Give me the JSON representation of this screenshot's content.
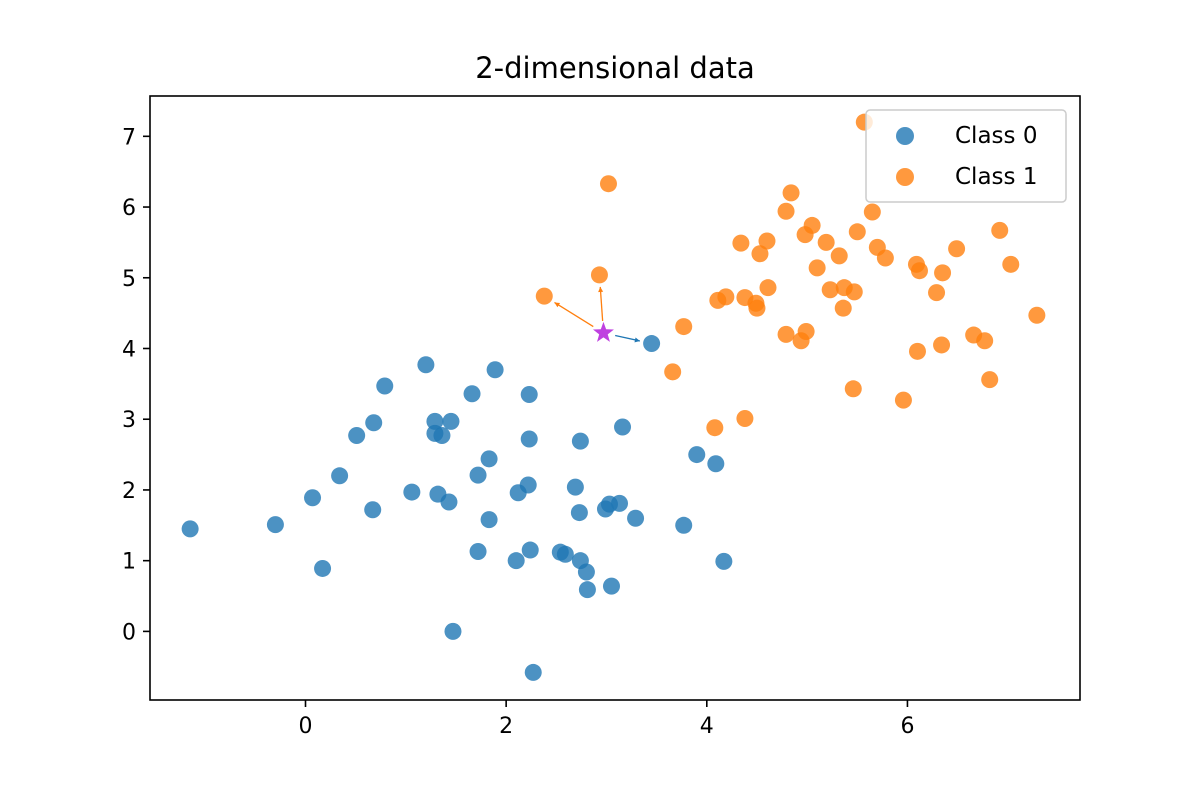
{
  "chart_data": {
    "type": "scatter",
    "title": "2-dimensional data",
    "xlabel": "",
    "ylabel": "",
    "xlim": [
      -1.55,
      7.72
    ],
    "ylim": [
      -0.97,
      7.57
    ],
    "xticks": [
      0,
      2,
      4,
      6
    ],
    "yticks": [
      0,
      1,
      2,
      3,
      4,
      5,
      6,
      7
    ],
    "grid": false,
    "legend_position": "top-right",
    "series": [
      {
        "name": "Class 0",
        "color": "#1f77b4",
        "points": [
          [
            -1.15,
            1.45
          ],
          [
            -0.3,
            1.51
          ],
          [
            0.07,
            1.89
          ],
          [
            0.17,
            0.89
          ],
          [
            0.34,
            2.2
          ],
          [
            0.51,
            2.77
          ],
          [
            0.67,
            1.72
          ],
          [
            0.68,
            2.95
          ],
          [
            0.79,
            3.47
          ],
          [
            1.06,
            1.97
          ],
          [
            1.2,
            3.77
          ],
          [
            1.29,
            2.97
          ],
          [
            1.29,
            2.8
          ],
          [
            1.32,
            1.94
          ],
          [
            1.36,
            2.77
          ],
          [
            1.43,
            1.83
          ],
          [
            1.45,
            2.97
          ],
          [
            1.47,
            0.0
          ],
          [
            1.66,
            3.36
          ],
          [
            1.72,
            2.21
          ],
          [
            1.72,
            1.13
          ],
          [
            1.83,
            2.44
          ],
          [
            1.83,
            1.58
          ],
          [
            1.89,
            3.7
          ],
          [
            2.1,
            1.0
          ],
          [
            2.12,
            1.96
          ],
          [
            2.22,
            2.07
          ],
          [
            2.23,
            3.35
          ],
          [
            2.23,
            2.72
          ],
          [
            2.24,
            1.15
          ],
          [
            2.27,
            -0.58
          ],
          [
            2.54,
            1.12
          ],
          [
            2.59,
            1.09
          ],
          [
            2.69,
            2.04
          ],
          [
            2.73,
            1.68
          ],
          [
            2.74,
            2.69
          ],
          [
            2.74,
            1.0
          ],
          [
            2.8,
            0.84
          ],
          [
            2.81,
            0.59
          ],
          [
            2.99,
            1.73
          ],
          [
            3.03,
            1.8
          ],
          [
            3.05,
            0.64
          ],
          [
            3.13,
            1.81
          ],
          [
            3.16,
            2.89
          ],
          [
            3.29,
            1.6
          ],
          [
            3.45,
            4.07
          ],
          [
            3.77,
            1.5
          ],
          [
            3.9,
            2.5
          ],
          [
            4.09,
            2.37
          ],
          [
            4.17,
            0.99
          ]
        ]
      },
      {
        "name": "Class 1",
        "color": "#ff7f0e",
        "points": [
          [
            2.38,
            4.74
          ],
          [
            2.93,
            5.04
          ],
          [
            3.02,
            6.33
          ],
          [
            3.66,
            3.67
          ],
          [
            3.77,
            4.31
          ],
          [
            4.08,
            2.88
          ],
          [
            4.11,
            4.68
          ],
          [
            4.19,
            4.73
          ],
          [
            4.34,
            5.49
          ],
          [
            4.38,
            3.01
          ],
          [
            4.38,
            4.72
          ],
          [
            4.49,
            4.64
          ],
          [
            4.5,
            4.57
          ],
          [
            4.53,
            5.34
          ],
          [
            4.6,
            5.52
          ],
          [
            4.61,
            4.86
          ],
          [
            4.79,
            4.2
          ],
          [
            4.79,
            5.94
          ],
          [
            4.84,
            6.2
          ],
          [
            4.94,
            4.11
          ],
          [
            4.98,
            5.61
          ],
          [
            4.99,
            4.24
          ],
          [
            5.05,
            5.74
          ],
          [
            5.1,
            5.14
          ],
          [
            5.19,
            5.5
          ],
          [
            5.23,
            4.83
          ],
          [
            5.32,
            5.31
          ],
          [
            5.36,
            4.57
          ],
          [
            5.37,
            4.86
          ],
          [
            5.46,
            3.43
          ],
          [
            5.47,
            4.8
          ],
          [
            5.5,
            5.65
          ],
          [
            5.57,
            7.2
          ],
          [
            5.65,
            5.93
          ],
          [
            5.7,
            5.43
          ],
          [
            5.78,
            5.28
          ],
          [
            5.96,
            3.27
          ],
          [
            6.09,
            5.19
          ],
          [
            6.1,
            3.96
          ],
          [
            6.12,
            5.1
          ],
          [
            6.29,
            4.79
          ],
          [
            6.34,
            4.05
          ],
          [
            6.35,
            5.07
          ],
          [
            6.49,
            5.41
          ],
          [
            6.66,
            4.19
          ],
          [
            6.77,
            4.11
          ],
          [
            6.82,
            3.56
          ],
          [
            6.92,
            5.67
          ],
          [
            7.03,
            5.19
          ],
          [
            7.29,
            4.47
          ]
        ]
      }
    ],
    "query_point": {
      "x": 2.97,
      "y": 4.22,
      "color": "#bf40e0",
      "marker": "star"
    },
    "neighbor_arrows": [
      {
        "to": [
          3.45,
          4.07
        ],
        "color": "#1f77b4"
      },
      {
        "to": [
          2.93,
          5.04
        ],
        "color": "#ff7f0e"
      },
      {
        "to": [
          2.38,
          4.74
        ],
        "color": "#ff7f0e"
      }
    ]
  }
}
